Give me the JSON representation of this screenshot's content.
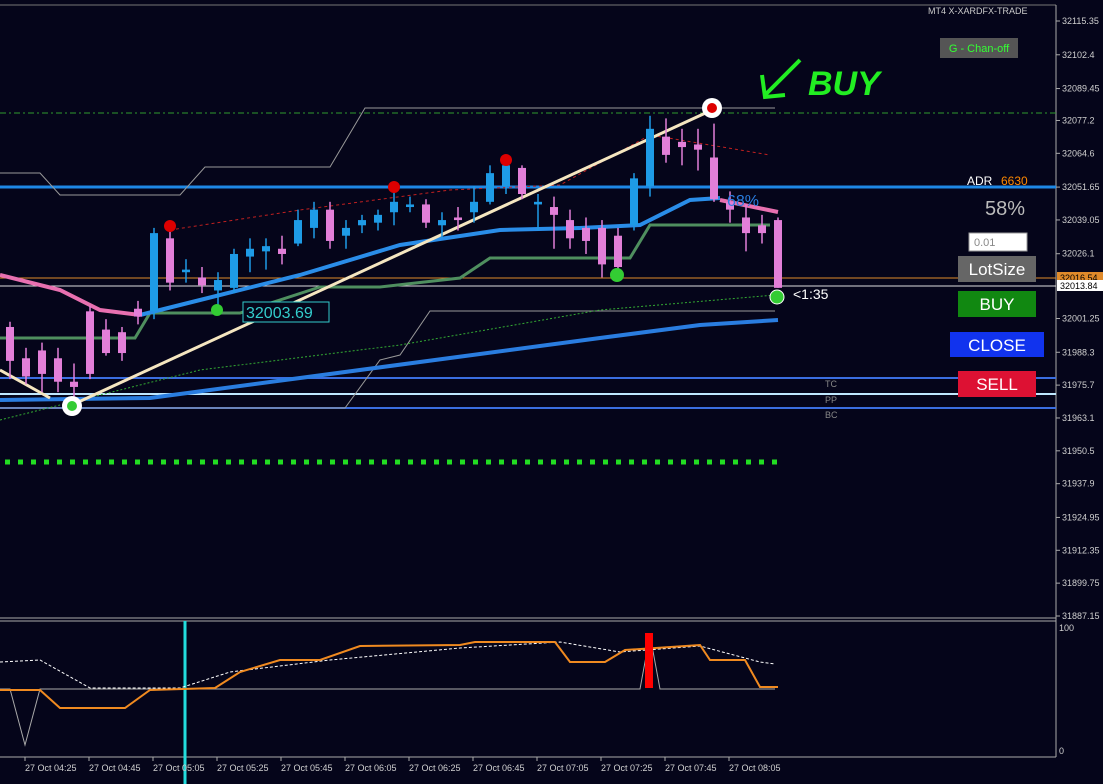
{
  "window": {
    "terminal": "MT4 X-XARDFX-TRADE",
    "channel_button": "G - Chan-off",
    "handwritten": "BUY",
    "adr_label": "ADR",
    "adr_value": "6630",
    "adr_percent": "58%",
    "chart_percent": "68%",
    "lot_input": "0.01",
    "lot_button": "LotSize",
    "buy_button": "BUY",
    "close_button": "CLOSE",
    "sell_button": "SELL",
    "price_tag": "32003.69",
    "countdown": "<1:35",
    "pivot_labels": [
      "TC",
      "PP",
      "BC"
    ],
    "bid_label": "32016.54",
    "ask_label": "32013.84",
    "osc_ticks": [
      "100",
      "0"
    ]
  },
  "chart": {
    "type": "candlestick",
    "ylim": [
      31886.38,
      32121.49
    ],
    "yticks": [
      32115.35,
      32102.4,
      32089.45,
      32077.2,
      32064.6,
      32051.65,
      32039.05,
      32026.1,
      32001.25,
      31988.3,
      31975.7,
      31963.1,
      31950.5,
      31937.9,
      31924.95,
      31912.35,
      31899.75,
      31887.15
    ],
    "times": [
      "27 Oct 04:25",
      "27 Oct 04:45",
      "27 Oct 05:05",
      "27 Oct 05:25",
      "27 Oct 05:45",
      "27 Oct 06:05",
      "27 Oct 06:25",
      "27 Oct 06:45",
      "27 Oct 07:05",
      "27 Oct 07:25",
      "27 Oct 07:45",
      "27 Oct 08:05"
    ],
    "bull_color": "#1e9be6",
    "bear_color": "#e27fd8",
    "doji_color": "#888888",
    "candles": [
      [
        31998,
        32000,
        31978,
        31985
      ],
      [
        31986,
        31990,
        31976,
        31979
      ],
      [
        31989,
        31992,
        31973,
        31980
      ],
      [
        31986,
        31990,
        31973,
        31977
      ],
      [
        31977,
        31984,
        31970,
        31975
      ],
      [
        32004,
        32006,
        31978,
        31980
      ],
      [
        31997,
        32001,
        31987,
        31988
      ],
      [
        31996,
        31998,
        31985,
        31988
      ],
      [
        32005,
        32008,
        31999,
        32002
      ],
      [
        32004,
        32036,
        32001,
        32034
      ],
      [
        32032,
        32036,
        32012,
        32015
      ],
      [
        32019,
        32024,
        32015,
        32020
      ],
      [
        32017,
        32021,
        32011,
        32014
      ],
      [
        32012,
        32019,
        32006,
        32016
      ],
      [
        32013,
        32028,
        32011,
        32026
      ],
      [
        32025,
        32032,
        32019,
        32028
      ],
      [
        32027,
        32032,
        32020,
        32029
      ],
      [
        32028,
        32033,
        32022,
        32026
      ],
      [
        32030,
        32043,
        32029,
        32039
      ],
      [
        32036,
        32046,
        32032,
        32043
      ],
      [
        32043,
        32046,
        32028,
        32031
      ],
      [
        32033,
        32039,
        32028,
        32036
      ],
      [
        32037,
        32041,
        32034,
        32039
      ],
      [
        32038,
        32043,
        32035,
        32041
      ],
      [
        32042,
        32050,
        32037,
        32046
      ],
      [
        32044,
        32048,
        32042,
        32045
      ],
      [
        32045,
        32047,
        32036,
        32038
      ],
      [
        32037,
        32042,
        32032,
        32039
      ],
      [
        32040,
        32044,
        32035,
        32039
      ],
      [
        32042,
        32052,
        32038,
        32046
      ],
      [
        32046,
        32060,
        32045,
        32057
      ],
      [
        32052,
        32063,
        32049,
        32060
      ],
      [
        32059,
        32060,
        32047,
        32049
      ],
      [
        32045,
        32049,
        32035,
        32046
      ],
      [
        32044,
        32048,
        32028,
        32041
      ],
      [
        32039,
        32043,
        32028,
        32032
      ],
      [
        32036,
        32040,
        32026,
        32031
      ],
      [
        32036,
        32039,
        32017,
        32022
      ],
      [
        32033,
        32036,
        32018,
        32021
      ],
      [
        32037,
        32057,
        32035,
        32055
      ],
      [
        32052,
        32079,
        32048,
        32074
      ],
      [
        32071,
        32078,
        32061,
        32064
      ],
      [
        32069,
        32074,
        32060,
        32067
      ],
      [
        32068,
        32074,
        32058,
        32066
      ],
      [
        32063,
        32076,
        32046,
        32047
      ],
      [
        32046,
        32050,
        32038,
        32043
      ],
      [
        32040,
        32045,
        32027,
        32034
      ],
      [
        32037,
        32041,
        32030,
        32034
      ],
      [
        32039,
        32040,
        32013,
        32013
      ]
    ]
  }
}
